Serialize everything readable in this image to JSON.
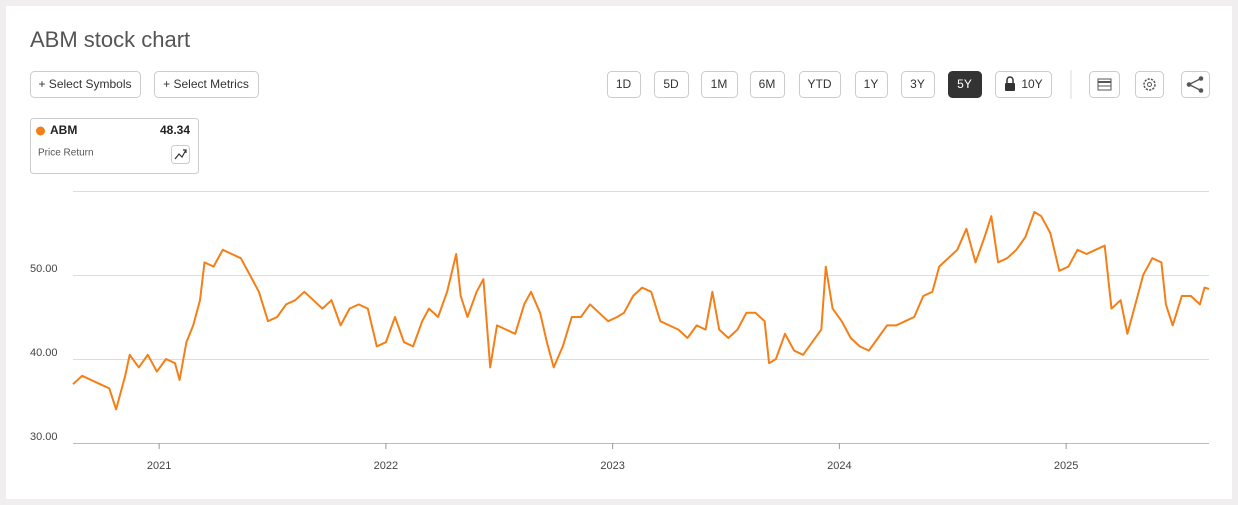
{
  "toolbar": {
    "buttons": [
      "+ Select Symbols",
      "+ Select Metrics"
    ],
    "ranges": [
      "1D",
      "5D",
      "1M",
      "6M",
      "YTD",
      "1Y",
      "3Y",
      "5Y",
      "10Y"
    ],
    "active_range": "5Y"
  },
  "chart_data": {
    "type": "line",
    "title": "ABM stock chart",
    "legend_note": "Price Return",
    "latest": 48.34,
    "x": [
      2020.62,
      2020.66,
      2020.7,
      2020.74,
      2020.78,
      2020.81,
      2020.85,
      2020.87,
      2020.91,
      2020.95,
      2020.99,
      2021.03,
      2021.07,
      2021.09,
      2021.12,
      2021.15,
      2021.18,
      2021.2,
      2021.24,
      2021.28,
      2021.32,
      2021.36,
      2021.4,
      2021.44,
      2021.48,
      2021.52,
      2021.56,
      2021.6,
      2021.64,
      2021.68,
      2021.72,
      2021.76,
      2021.8,
      2021.84,
      2021.88,
      2021.92,
      2021.96,
      2022.0,
      2022.04,
      2022.08,
      2022.12,
      2022.16,
      2022.19,
      2022.23,
      2022.27,
      2022.31,
      2022.33,
      2022.36,
      2022.4,
      2022.43,
      2022.46,
      2022.49,
      2022.53,
      2022.57,
      2022.61,
      2022.64,
      2022.68,
      2022.71,
      2022.74,
      2022.78,
      2022.82,
      2022.86,
      2022.9,
      2022.94,
      2022.98,
      2023.02,
      2023.05,
      2023.09,
      2023.13,
      2023.17,
      2023.21,
      2023.25,
      2023.29,
      2023.33,
      2023.37,
      2023.41,
      2023.44,
      2023.47,
      2023.51,
      2023.55,
      2023.59,
      2023.63,
      2023.67,
      2023.69,
      2023.72,
      2023.76,
      2023.8,
      2023.84,
      2023.88,
      2023.92,
      2023.94,
      2023.97,
      2024.01,
      2024.05,
      2024.09,
      2024.13,
      2024.17,
      2024.21,
      2024.25,
      2024.29,
      2024.33,
      2024.37,
      2024.41,
      2024.44,
      2024.48,
      2024.52,
      2024.56,
      2024.6,
      2024.64,
      2024.67,
      2024.7,
      2024.74,
      2024.78,
      2024.82,
      2024.86,
      2024.89,
      2024.93,
      2024.97,
      2025.01,
      2025.05,
      2025.09,
      2025.13,
      2025.17,
      2025.2,
      2025.24,
      2025.27,
      2025.3,
      2025.34,
      2025.38,
      2025.42,
      2025.44,
      2025.47,
      2025.51,
      2025.55,
      2025.59,
      2025.61,
      2025.63
    ],
    "series": [
      {
        "name": "ABM",
        "color": "#f57f17",
        "values": [
          37,
          38,
          37.5,
          37,
          36.5,
          34,
          38,
          40.5,
          39,
          40.5,
          38.5,
          40,
          39.5,
          37.5,
          42,
          44,
          47,
          51.5,
          51,
          53,
          52.5,
          52,
          50,
          48,
          44.5,
          45,
          46.5,
          47,
          48,
          47,
          46,
          47,
          44,
          46,
          46.5,
          46,
          41.5,
          42,
          45,
          42,
          41.5,
          44.5,
          46,
          45,
          48,
          52.5,
          47.5,
          45,
          48,
          49.5,
          39,
          44,
          43.5,
          43,
          46.5,
          48,
          45.5,
          42,
          39,
          41.5,
          45,
          45,
          46.5,
          45.5,
          44.5,
          45,
          45.5,
          47.5,
          48.5,
          48,
          44.5,
          44,
          43.5,
          42.5,
          44,
          43.5,
          48,
          43.5,
          42.5,
          43.5,
          45.5,
          45.5,
          44.5,
          39.5,
          40,
          43,
          41,
          40.5,
          42,
          43.5,
          51,
          46,
          44.5,
          42.5,
          41.5,
          41,
          42.5,
          44,
          44,
          44.5,
          45,
          47.5,
          48,
          51,
          52,
          53,
          55.5,
          51.5,
          54.5,
          57,
          51.5,
          52,
          53,
          54.5,
          57.5,
          57,
          55,
          50.5,
          51,
          53,
          52.5,
          53,
          53.5,
          46,
          47,
          43,
          46,
          50,
          52,
          51.5,
          46.5,
          44,
          47.5,
          47.5,
          46.5,
          48.5,
          48.34
        ]
      }
    ],
    "xlim": [
      2020.62,
      2025.63
    ],
    "xticks": [
      2021,
      2022,
      2023,
      2024,
      2025
    ],
    "ylim": [
      30,
      60
    ],
    "yticks": [
      {
        "value": 30,
        "label": "30.00"
      },
      {
        "value": 40,
        "label": "40.00"
      },
      {
        "value": 50,
        "label": "50.00"
      }
    ],
    "grid": true
  }
}
